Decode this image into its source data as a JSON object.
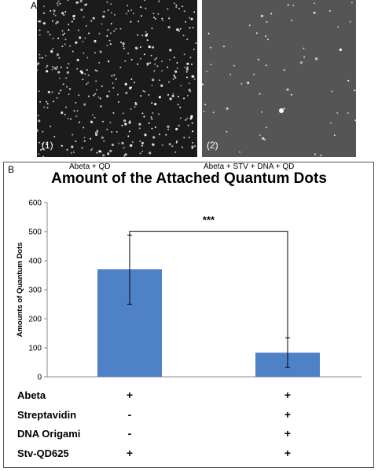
{
  "panel_a": {
    "letter": "A",
    "images": [
      {
        "label": "(1)",
        "dot_density": "high"
      },
      {
        "label": "(2)",
        "dot_density": "low"
      }
    ]
  },
  "panel_b": {
    "letter": "B",
    "captions": [
      "Abeta + QD",
      "Abeta + STV + DNA + QD"
    ]
  },
  "chart_data": {
    "type": "bar",
    "title": "Amount of the Attached Quantum Dots",
    "ylabel": "Amounts of Quantum Dots",
    "xlabel": "",
    "ylim": [
      0,
      600
    ],
    "yticks": [
      0,
      100,
      200,
      300,
      400,
      500,
      600
    ],
    "categories": [
      "",
      ""
    ],
    "series": [
      {
        "values": [
          370,
          83
        ],
        "error_low": [
          250,
          32
        ],
        "error_high": [
          488,
          134
        ]
      }
    ],
    "bar_color": "#4f81c7",
    "significance": "***",
    "grid": false
  },
  "conditions": {
    "rows": [
      {
        "label": "Abeta",
        "marks": [
          "+",
          "+"
        ]
      },
      {
        "label": "Streptavidin",
        "marks": [
          "-",
          "+"
        ]
      },
      {
        "label": "DNA Origami",
        "marks": [
          "-",
          "+"
        ]
      },
      {
        "label": "Stv-QD625",
        "marks": [
          "+",
          "+"
        ]
      }
    ]
  }
}
